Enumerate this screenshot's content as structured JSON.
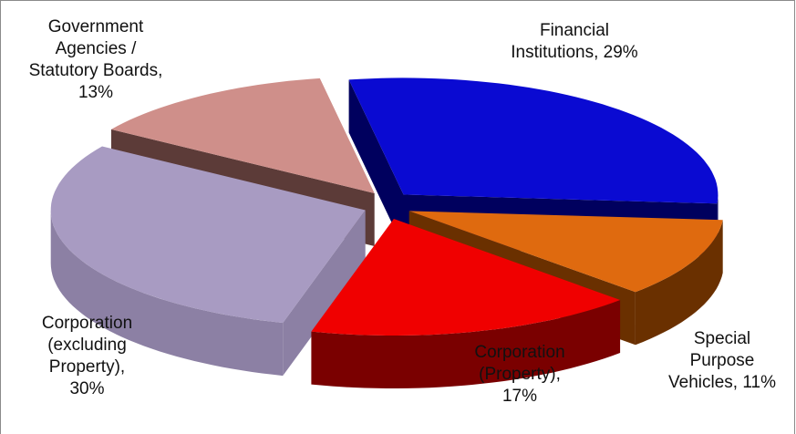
{
  "chart_data": {
    "type": "pie3d",
    "values": [
      29,
      11,
      17,
      30,
      13
    ],
    "value_labels": [
      "Financial Institutions, 29%",
      "Special Purpose Vehicles, 11%",
      "Corporation (Property), 17%",
      "Corporation (excluding Property), 30%",
      "Government Agencies / Statutory Boards, 13%"
    ],
    "colors": [
      "#0a0ad2",
      "#df6a0f",
      "#f00000",
      "#a89bc2",
      "#cf8f8a"
    ],
    "side_colors": [
      "#00005e",
      "#6a3000",
      "#7a0000",
      "#8c80a4",
      "#5c3b38"
    ]
  }
}
